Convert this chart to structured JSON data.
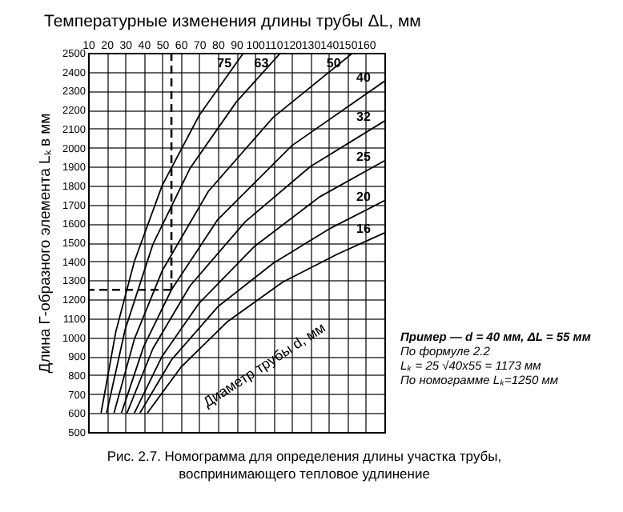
{
  "chart_data": {
    "type": "line",
    "xlabel": "Температурные изменения длины трубы ΔL, мм",
    "ylabel": "Длина Г-образного элемента Lₖ в мм",
    "xlim": [
      10,
      170
    ],
    "xticks": [
      10,
      20,
      30,
      40,
      50,
      60,
      70,
      80,
      90,
      100,
      110,
      120,
      130,
      140,
      150,
      160
    ],
    "ylim": [
      500,
      2500
    ],
    "yticks": [
      500,
      600,
      700,
      800,
      900,
      1000,
      1100,
      1200,
      1300,
      1400,
      1500,
      1600,
      1700,
      1800,
      1900,
      2000,
      2100,
      2200,
      2300,
      2400,
      2500
    ],
    "grid": true,
    "legend": false,
    "series": [
      {
        "name": "75",
        "color": "#000000",
        "x": [
          17,
          25,
          35,
          50,
          70,
          94
        ],
        "values": [
          600,
          1030,
          1400,
          1800,
          2170,
          2500
        ]
      },
      {
        "name": "63",
        "color": "#000000",
        "x": [
          20,
          30,
          45,
          65,
          90,
          114
        ],
        "values": [
          600,
          1040,
          1490,
          1890,
          2240,
          2500
        ]
      },
      {
        "name": "50",
        "color": "#000000",
        "x": [
          24,
          35,
          50,
          75,
          110,
          153
        ],
        "values": [
          600,
          990,
          1350,
          1770,
          2160,
          2500
        ]
      },
      {
        "name": "40",
        "color": "#000000",
        "x": [
          28,
          40,
          55,
          80,
          120,
          170
        ],
        "values": [
          600,
          950,
          1250,
          1620,
          2010,
          2350
        ]
      },
      {
        "name": "32",
        "color": "#000000",
        "x": [
          31,
          45,
          65,
          95,
          130,
          170
        ],
        "values": [
          600,
          940,
          1270,
          1610,
          1900,
          2140
        ]
      },
      {
        "name": "25",
        "color": "#000000",
        "x": [
          35,
          50,
          70,
          100,
          135,
          170
        ],
        "values": [
          600,
          900,
          1180,
          1480,
          1740,
          1930
        ]
      },
      {
        "name": "20",
        "color": "#000000",
        "x": [
          38,
          55,
          80,
          110,
          140,
          170
        ],
        "values": [
          600,
          880,
          1160,
          1390,
          1570,
          1720
        ]
      },
      {
        "name": "16",
        "color": "#000000",
        "x": [
          42,
          60,
          85,
          115,
          145,
          170
        ],
        "values": [
          600,
          840,
          1080,
          1290,
          1440,
          1550
        ]
      }
    ],
    "ref_lines": [
      {
        "axis": "x",
        "value": 55,
        "line_style": "dashed"
      },
      {
        "axis": "y",
        "value": 1250,
        "line_style": "dashed"
      }
    ],
    "annotations": [
      "Пример — d = 40 мм, ΔL = 55 мм",
      "По формуле 2.2",
      "Lₖ = 25 √40x55 = 1173 мм",
      "По номограмме Lₖ=1250 мм",
      "Диаметр трубы d, мм",
      "Рис. 2.7. Номограмма для определения длины участка трубы, воспринимающего тепловое удлинение"
    ]
  }
}
